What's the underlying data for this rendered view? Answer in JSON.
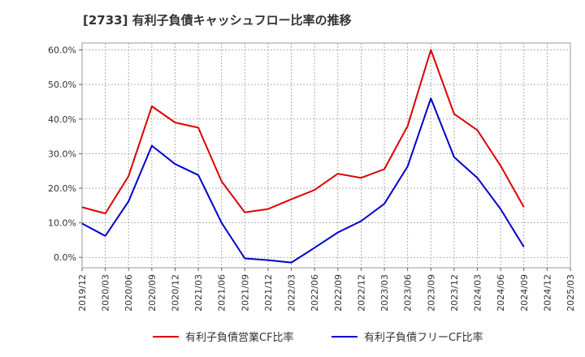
{
  "chart_data": {
    "type": "line",
    "title": "[2733]  有利子負債キャッシュフロー比率の推移",
    "xlabel": "",
    "ylabel": "",
    "ylim": [
      -3,
      62
    ],
    "y_ticks": [
      {
        "value": 0,
        "label": "0.0%"
      },
      {
        "value": 10,
        "label": "10.0%"
      },
      {
        "value": 20,
        "label": "20.0%"
      },
      {
        "value": 30,
        "label": "30.0%"
      },
      {
        "value": 40,
        "label": "40.0%"
      },
      {
        "value": 50,
        "label": "50.0%"
      },
      {
        "value": 60,
        "label": "60.0%"
      }
    ],
    "x": [
      "2019/12",
      "2020/03",
      "2020/06",
      "2020/09",
      "2020/12",
      "2021/03",
      "2021/06",
      "2021/09",
      "2021/12",
      "2022/03",
      "2022/06",
      "2022/09",
      "2022/12",
      "2023/03",
      "2023/06",
      "2023/09",
      "2023/12",
      "2024/03",
      "2024/06",
      "2024/09",
      "2024/12",
      "2025/03"
    ],
    "grid": true,
    "legend_position": "bottom",
    "series": [
      {
        "name": "有利子負債営業CF比率",
        "color": "#dd0000",
        "values": [
          14.5,
          12.7,
          23.5,
          43.7,
          39.0,
          37.5,
          22.0,
          13.0,
          14.0,
          16.8,
          19.5,
          24.2,
          23.0,
          25.5,
          38.0,
          60.0,
          41.5,
          36.8,
          26.5,
          14.5,
          null,
          null
        ]
      },
      {
        "name": "有利子負債フリーCF比率",
        "color": "#0000cc",
        "values": [
          9.8,
          6.2,
          16.2,
          32.3,
          27.0,
          23.8,
          10.0,
          -0.3,
          -0.8,
          -1.5,
          2.8,
          7.2,
          10.5,
          15.5,
          26.3,
          46.0,
          29.0,
          23.0,
          14.0,
          3.0,
          null,
          null
        ]
      }
    ]
  }
}
